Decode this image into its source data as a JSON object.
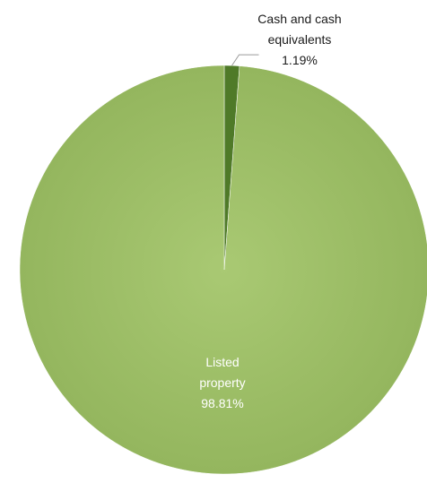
{
  "chart_data": {
    "type": "pie",
    "slices": [
      {
        "label_lines": [
          "Cash and cash",
          "equivalents"
        ],
        "percent_label": "1.19%",
        "value": 1.19,
        "color": "#4f7a28"
      },
      {
        "label_lines": [
          "Listed",
          "property"
        ],
        "percent_label": "98.81%",
        "value": 98.81,
        "color": "#a2c26a"
      }
    ],
    "legend": "none"
  }
}
